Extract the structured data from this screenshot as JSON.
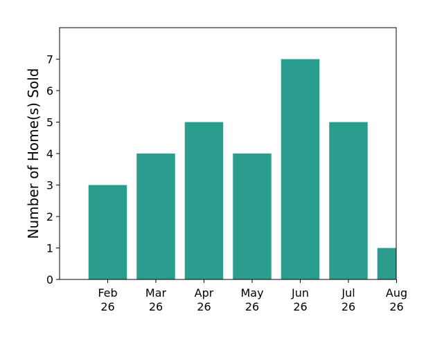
{
  "chart_data": {
    "type": "bar",
    "categories": [
      {
        "month": "Feb",
        "year": "26"
      },
      {
        "month": "Mar",
        "year": "26"
      },
      {
        "month": "Apr",
        "year": "26"
      },
      {
        "month": "May",
        "year": "26"
      },
      {
        "month": "Jun",
        "year": "26"
      },
      {
        "month": "Jul",
        "year": "26"
      },
      {
        "month": "Aug",
        "year": "26"
      }
    ],
    "values": [
      3,
      4,
      5,
      4,
      7,
      5,
      1
    ],
    "ylabel": "Number of Home(s) Sold",
    "xlabel": "",
    "title": "",
    "ylim": [
      0,
      8
    ],
    "yticks": [
      "0",
      "1",
      "2",
      "3",
      "4",
      "5",
      "6",
      "7"
    ],
    "bar_color": "#2a9d8f",
    "grid": false
  }
}
